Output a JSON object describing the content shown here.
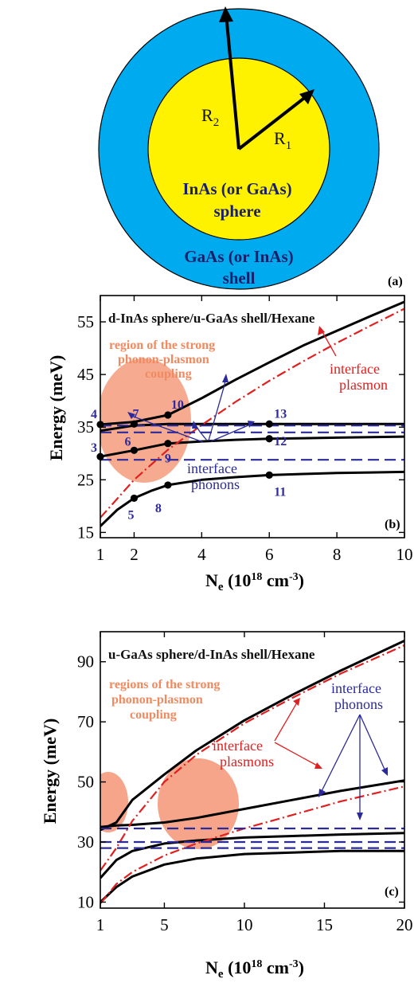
{
  "panel_a": {
    "tag": "(a)",
    "r2_label": "R",
    "r2_sub": "2",
    "r1_label": "R",
    "r1_sub": "1",
    "core_line1": "InAs (or GaAs)",
    "core_line2": "sphere",
    "shell_line1": "GaAs (or InAs)",
    "shell_line2": "shell",
    "colors": {
      "shell": "#00aaee",
      "core": "#fff200",
      "outline": "#000000"
    }
  },
  "chart_data": [
    {
      "id": "b",
      "type": "line",
      "title": "d-InAs sphere/u-GaAs shell/Hexane",
      "tag": "(b)",
      "ylabel": "Energy (meV)",
      "xlabel_main": "N",
      "xlabel_sub": "e",
      "xlabel_rest": " (10",
      "xlabel_exp": "18",
      "xlabel_tail": " cm",
      "xlabel_exp2": "-3",
      "xlabel_close": ")",
      "xlim": [
        1,
        10
      ],
      "ylim": [
        14,
        60
      ],
      "xticks": [
        1,
        2,
        4,
        6,
        8,
        10
      ],
      "yticks": [
        15,
        25,
        35,
        45,
        55
      ],
      "series": [
        {
          "style": "solid",
          "color": "#000000",
          "x": [
            1,
            2,
            3,
            4,
            5,
            6,
            7,
            8,
            9,
            10
          ],
          "y": [
            35.5,
            36.0,
            37.3,
            40.5,
            44.0,
            47.3,
            50.5,
            53.3,
            56.1,
            58.8
          ]
        },
        {
          "style": "solid",
          "color": "#000000",
          "x": [
            1,
            2,
            3,
            4,
            5,
            6,
            7,
            8,
            9,
            10
          ],
          "y": [
            34.3,
            35.3,
            35.6,
            35.6,
            35.6,
            35.6,
            35.6,
            35.6,
            35.6,
            35.6
          ]
        },
        {
          "style": "solid",
          "color": "#000000",
          "x": [
            1,
            2,
            3,
            4,
            5,
            6,
            7,
            8,
            9,
            10
          ],
          "y": [
            29.4,
            30.6,
            31.9,
            32.3,
            32.6,
            32.8,
            32.9,
            33.0,
            33.1,
            33.2
          ]
        },
        {
          "style": "solid",
          "color": "#000000",
          "x": [
            1,
            1.5,
            2,
            2.5,
            3,
            4,
            5,
            6,
            7,
            8,
            9,
            10
          ],
          "y": [
            16.2,
            19.3,
            21.5,
            22.9,
            24.0,
            25.0,
            25.5,
            25.9,
            26.1,
            26.3,
            26.4,
            26.5
          ]
        },
        {
          "style": "dashdot",
          "color": "#e02020",
          "x": [
            1,
            2,
            3,
            4,
            5,
            6,
            7,
            8,
            9,
            10
          ],
          "y": [
            17.8,
            25.0,
            30.7,
            35.4,
            39.8,
            43.8,
            47.5,
            51.0,
            54.3,
            57.5
          ]
        },
        {
          "style": "dashed",
          "color": "#2a2a9a",
          "x": [
            1,
            10
          ],
          "y": [
            35.3,
            35.3
          ]
        },
        {
          "style": "dashed",
          "color": "#2a2a9a",
          "x": [
            1,
            10
          ],
          "y": [
            34.0,
            34.0
          ]
        },
        {
          "style": "dashed",
          "color": "#2a2a9a",
          "x": [
            1,
            10
          ],
          "y": [
            28.8,
            28.8
          ]
        }
      ],
      "points": [
        {
          "label": "4",
          "x": 1,
          "y": 35.5
        },
        {
          "label": "7",
          "x": 2,
          "y": 35.6
        },
        {
          "label": "10",
          "x": 3,
          "y": 37.3
        },
        {
          "label": "13",
          "x": 6,
          "y": 35.6
        },
        {
          "label": "3",
          "x": 1,
          "y": 29.4
        },
        {
          "label": "6",
          "x": 2,
          "y": 30.6
        },
        {
          "label": "9",
          "x": 3,
          "y": 31.9
        },
        {
          "label": "12",
          "x": 6,
          "y": 32.8
        },
        {
          "label": "5",
          "x": 2,
          "y": 21.5
        },
        {
          "label": "8",
          "x": 3,
          "y": 24.0
        },
        {
          "label": "11",
          "x": 6,
          "y": 25.9
        }
      ],
      "region_lines": [
        "region of the strong",
        "phonon-plasmon",
        "coupling"
      ],
      "plasmon_lines": [
        "interface",
        "plasmon"
      ],
      "phonon_lines": [
        "interface",
        "phonons"
      ]
    },
    {
      "id": "c",
      "type": "line",
      "title": "u-GaAs sphere/d-InAs shell/Hexane",
      "tag": "(c)",
      "ylabel": "Energy (meV)",
      "xlabel_main": "N",
      "xlabel_sub": "e",
      "xlabel_rest": " (10",
      "xlabel_exp": "18",
      "xlabel_tail": " cm",
      "xlabel_exp2": "-3",
      "xlabel_close": ")",
      "xlim": [
        1,
        20
      ],
      "ylim": [
        8,
        100
      ],
      "xticks": [
        1,
        5,
        10,
        15,
        20
      ],
      "yticks": [
        10,
        30,
        50,
        70,
        90
      ],
      "series": [
        {
          "style": "solid",
          "color": "#000000",
          "x": [
            1,
            2,
            3,
            5,
            7,
            10,
            13,
            16,
            20
          ],
          "y": [
            34.0,
            36.5,
            44.0,
            52.5,
            60.5,
            70.5,
            79.0,
            87.0,
            97.0
          ]
        },
        {
          "style": "solid",
          "color": "#000000",
          "x": [
            1,
            2,
            3,
            5,
            7,
            10,
            13,
            16,
            20
          ],
          "y": [
            35.0,
            35.5,
            35.7,
            36.5,
            38.0,
            41.0,
            44.0,
            47.0,
            50.5
          ]
        },
        {
          "style": "solid",
          "color": "#000000",
          "x": [
            1,
            2,
            3,
            5,
            7,
            10,
            13,
            16,
            20
          ],
          "y": [
            18.0,
            24.0,
            27.0,
            29.5,
            30.5,
            31.5,
            32.0,
            32.5,
            33.0
          ]
        },
        {
          "style": "solid",
          "color": "#000000",
          "x": [
            1,
            2,
            3,
            5,
            7,
            10,
            13,
            16,
            20
          ],
          "y": [
            10.0,
            15.0,
            18.5,
            22.5,
            24.5,
            26.0,
            26.5,
            27.0,
            27.0
          ]
        },
        {
          "style": "dashdot",
          "color": "#e02020",
          "x": [
            1,
            2,
            3,
            5,
            7,
            10,
            13,
            16,
            20
          ],
          "y": [
            20.5,
            28.0,
            37.0,
            50.0,
            59.0,
            69.5,
            78.0,
            86.0,
            95.5
          ]
        },
        {
          "style": "dashdot",
          "color": "#e02020",
          "x": [
            1,
            2,
            3,
            5,
            7,
            10,
            13,
            16,
            20
          ],
          "y": [
            9.5,
            16.0,
            20.0,
            25.5,
            29.5,
            34.5,
            39.0,
            43.5,
            48.5
          ]
        },
        {
          "style": "dashed",
          "color": "#2a2a9a",
          "x": [
            1,
            20
          ],
          "y": [
            34.5,
            34.5
          ]
        },
        {
          "style": "dashed",
          "color": "#2a2a9a",
          "x": [
            1,
            20
          ],
          "y": [
            30.0,
            30.0
          ]
        },
        {
          "style": "dashed",
          "color": "#2a2a9a",
          "x": [
            1,
            20
          ],
          "y": [
            28.0,
            28.0
          ]
        }
      ],
      "region_lines": [
        "regions of the strong",
        "phonon-plasmon",
        "coupling"
      ],
      "plasmon_lines": [
        "interface",
        "plasmons"
      ],
      "phonon_lines": [
        "interface",
        "phonons"
      ]
    }
  ],
  "colors": {
    "region": "#f6a58a",
    "plasmon": "#e02020",
    "phonon": "#2a2a9a"
  }
}
